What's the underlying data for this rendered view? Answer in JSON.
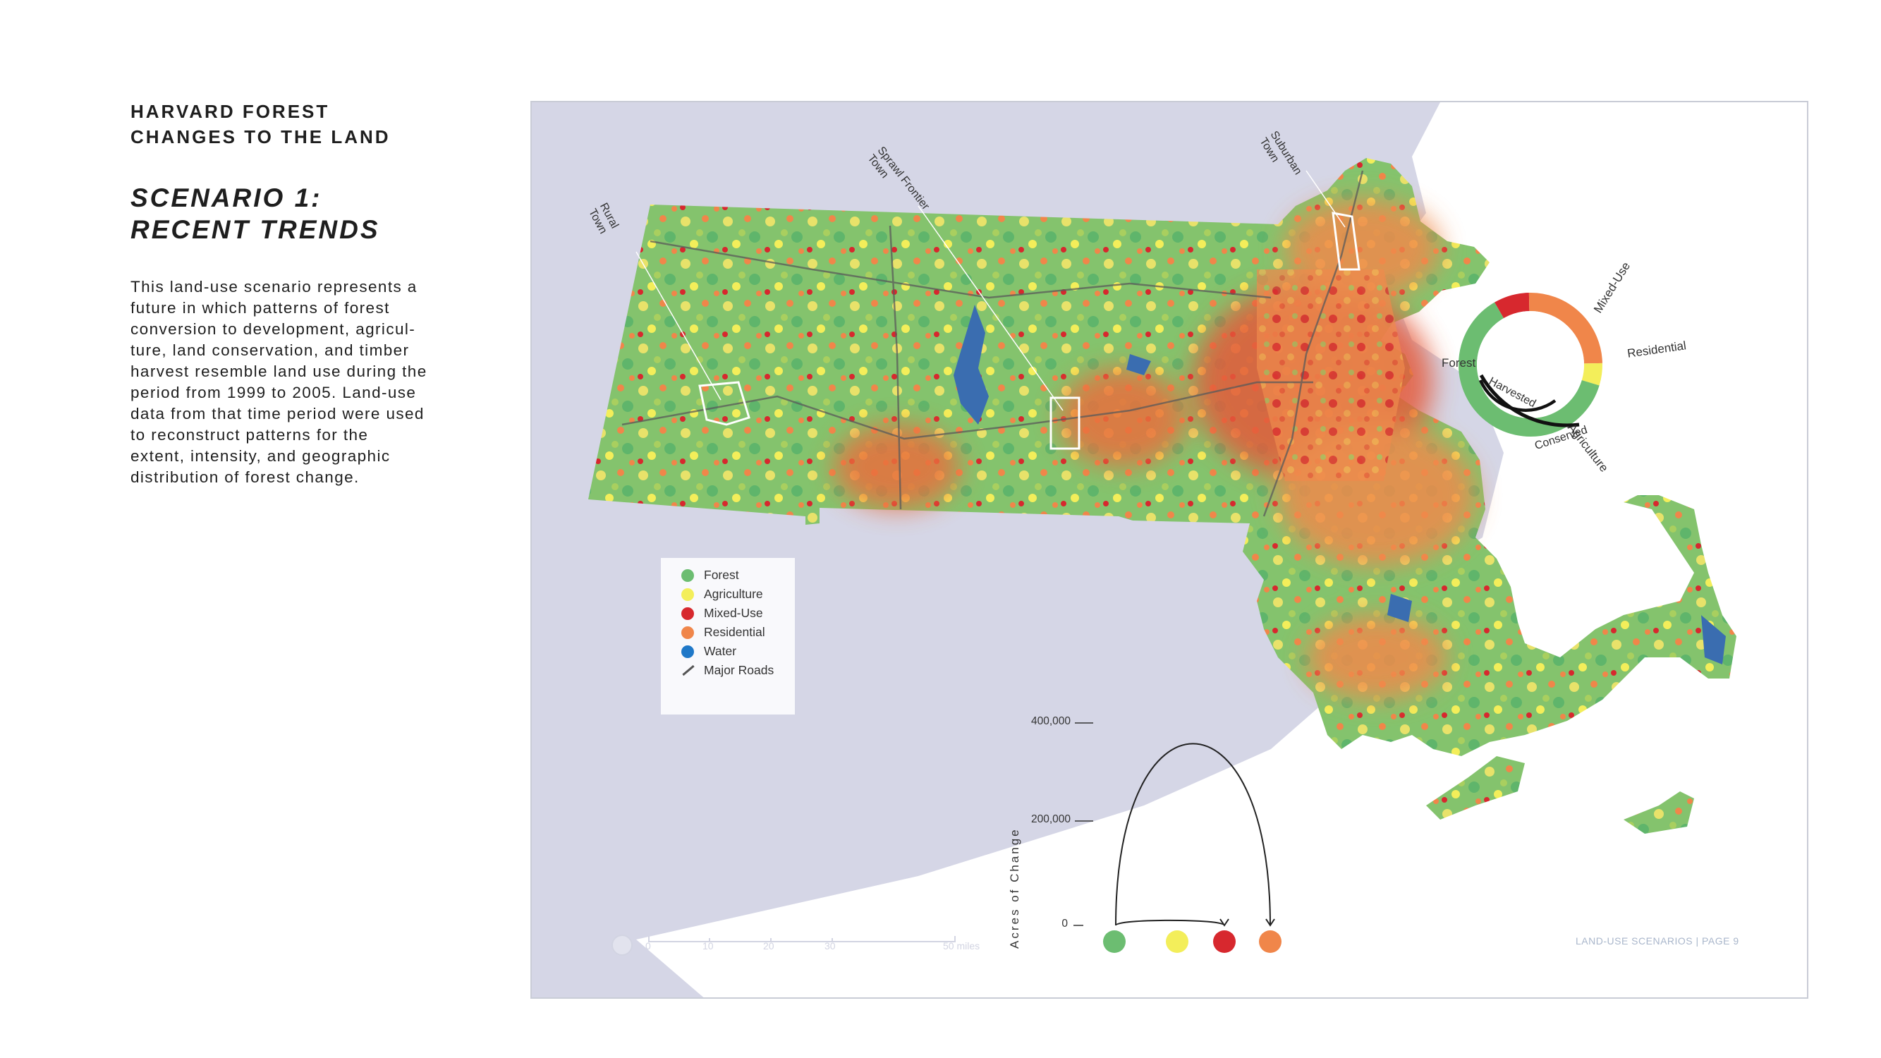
{
  "header": {
    "title_line1": "HARVARD FOREST",
    "title_line2": "CHANGES TO THE LAND",
    "scenario_line1": "SCENARIO 1:",
    "scenario_line2": "RECENT TRENDS"
  },
  "description_lines": [
    "This land-use scenario represents a",
    "future in which patterns of forest",
    "conversion to development, agricul-",
    "ture, land conservation, and timber",
    "harvest resemble land use during the",
    "period from 1999 to 2005. Land-use",
    "data from that time period were used",
    "to reconstruct patterns for the",
    "extent, intensity, and geographic",
    "distribution of forest change."
  ],
  "colors": {
    "forest": "#6cbd71",
    "agriculture": "#f3ee5a",
    "mixed_use": "#d7282e",
    "residential": "#f0864a",
    "water": "#3a6db0",
    "roads": "#555555",
    "land_background": "#d4d5e5",
    "harvested_conserved_arc": "#111111"
  },
  "legend": [
    {
      "label": "Forest",
      "color": "#6cbd71",
      "type": "dot"
    },
    {
      "label": "Agriculture",
      "color": "#f3ee5a",
      "type": "dot"
    },
    {
      "label": "Mixed-Use",
      "color": "#d7282e",
      "type": "dot"
    },
    {
      "label": "Residential",
      "color": "#f0864a",
      "type": "dot"
    },
    {
      "label": "Water",
      "color": "#1f78c8",
      "type": "dot"
    },
    {
      "label": "Major Roads",
      "color": "#555555",
      "type": "line"
    }
  ],
  "town_callouts": {
    "rural": [
      "Rural",
      "Town"
    ],
    "sprawl": [
      "Sprawl Frontier",
      "Town"
    ],
    "suburban": [
      "Suburban",
      "Town"
    ]
  },
  "ring_chart": {
    "segments": [
      {
        "label": "Forest",
        "share": 0.62,
        "color": "#6cbd71"
      },
      {
        "label": "Agriculture",
        "share": 0.05,
        "color": "#f3ee5a"
      },
      {
        "label": "Residential",
        "share": 0.25,
        "color": "#f0864a"
      },
      {
        "label": "Mixed-Use",
        "share": 0.08,
        "color": "#d7282e"
      }
    ],
    "inner_labels": [
      "Harvested",
      "Conserved"
    ]
  },
  "flow_chart": {
    "axis_title": "Acres of Change",
    "ticks": [
      "400,000",
      "200,000",
      "0"
    ],
    "categories": [
      {
        "name": "Forest",
        "color": "#6cbd71"
      },
      {
        "name": "Agriculture",
        "color": "#f3ee5a"
      },
      {
        "name": "Mixed-Use",
        "color": "#d7282e"
      },
      {
        "name": "Residential",
        "color": "#f0864a"
      }
    ],
    "flows": [
      {
        "from": "Forest",
        "to": "Mixed-Use",
        "acres": 10000
      },
      {
        "from": "Forest",
        "to": "Residential",
        "acres": 360000
      }
    ]
  },
  "scale_bar": {
    "labels": [
      "0",
      "10",
      "20",
      "30",
      "50 miles"
    ]
  },
  "footer": "LAND-USE SCENARIOS | PAGE 9"
}
